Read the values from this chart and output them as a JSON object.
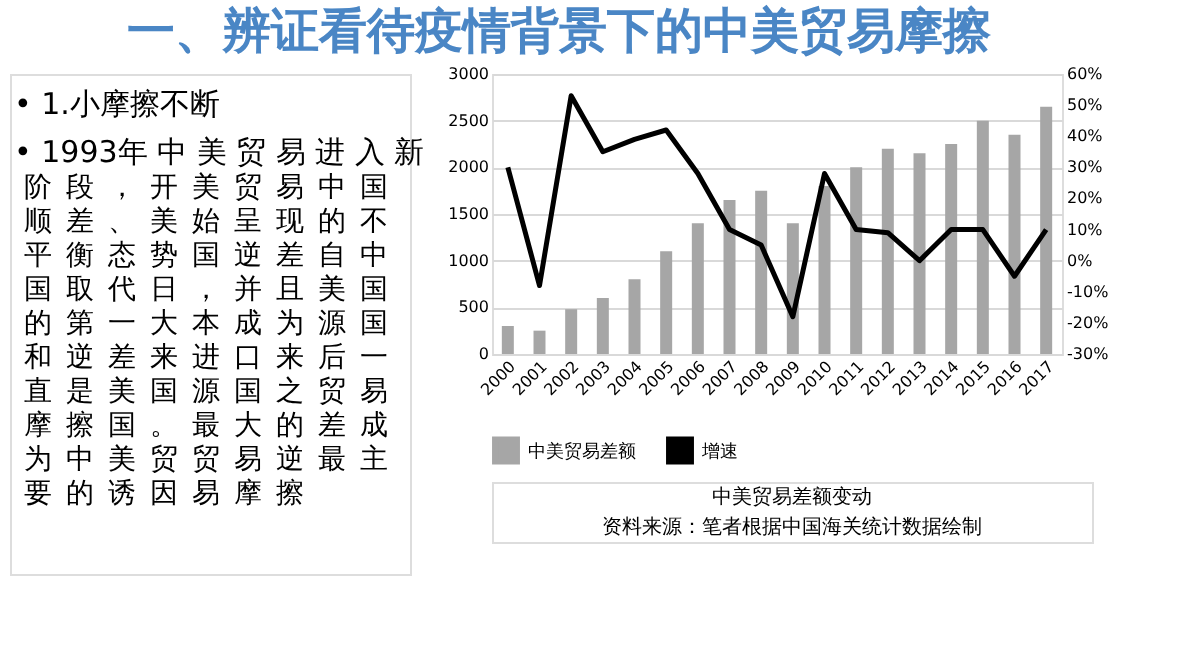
{
  "chart_data": {
    "type": "bar",
    "title": "一、辨证看待疫情背景下的中美贸易摩擦",
    "categories": [
      "2000",
      "2001",
      "2002",
      "2003",
      "2004",
      "2005",
      "2006",
      "2007",
      "2008",
      "2009",
      "2010",
      "2011",
      "2012",
      "2013",
      "2014",
      "2015",
      "2016",
      "2017"
    ],
    "series": [
      {
        "name": "中美贸易差额",
        "color": "#a6a6a6",
        "values": [
          300,
          250,
          480,
          600,
          800,
          1100,
          1400,
          1650,
          1750,
          1400,
          1800,
          2000,
          2200,
          2150,
          2250,
          2500,
          2350,
          2650
        ]
      },
      {
        "name": "增速",
        "type": "line",
        "axis": "y2",
        "color": "#000000",
        "values": [
          30,
          -8,
          53,
          35,
          39,
          42,
          28,
          10,
          5,
          -18,
          28,
          10,
          9,
          0,
          10,
          10,
          -5,
          10
        ]
      }
    ],
    "ylim": [
      0,
      3000
    ],
    "yticks": [
      0,
      500,
      1000,
      1500,
      2000,
      2500,
      3000
    ],
    "y2lim": [
      -30,
      60
    ],
    "y2ticks": [
      {
        "value": -30,
        "label": "-30%"
      },
      {
        "value": -20,
        "label": "-20%"
      },
      {
        "value": -10,
        "label": "-10%"
      },
      {
        "value": 0,
        "label": "0%"
      },
      {
        "value": 10,
        "label": "10%"
      },
      {
        "value": 20,
        "label": "20%"
      },
      {
        "value": 30,
        "label": "30%"
      },
      {
        "value": 40,
        "label": "40%"
      },
      {
        "value": 50,
        "label": "50%"
      },
      {
        "value": 60,
        "label": "60%"
      }
    ],
    "grid": "y",
    "legend": "bottom",
    "marker": "none",
    "line_style": "solid",
    "annotations": [
      "• 1.小摩擦不断",
      "• 1993年 中 美 贸 易 进 入 新",
      "阶顺平国的和直摩为要",
      "段差衡取第逆是擦中的",
      "，、态代一差美国美诱",
      "开美势日大来国。贸因",
      "美始国，本进源最贸易",
      "贸呈逆并成口国大易摩",
      "易现差且为来之的逆擦",
      "中的自美源后贸差最",
      "国不中国国一易成主",
      "中美贸易差额变动",
      "资料来源：笔者根据中国海关统计数据绘制"
    ]
  }
}
